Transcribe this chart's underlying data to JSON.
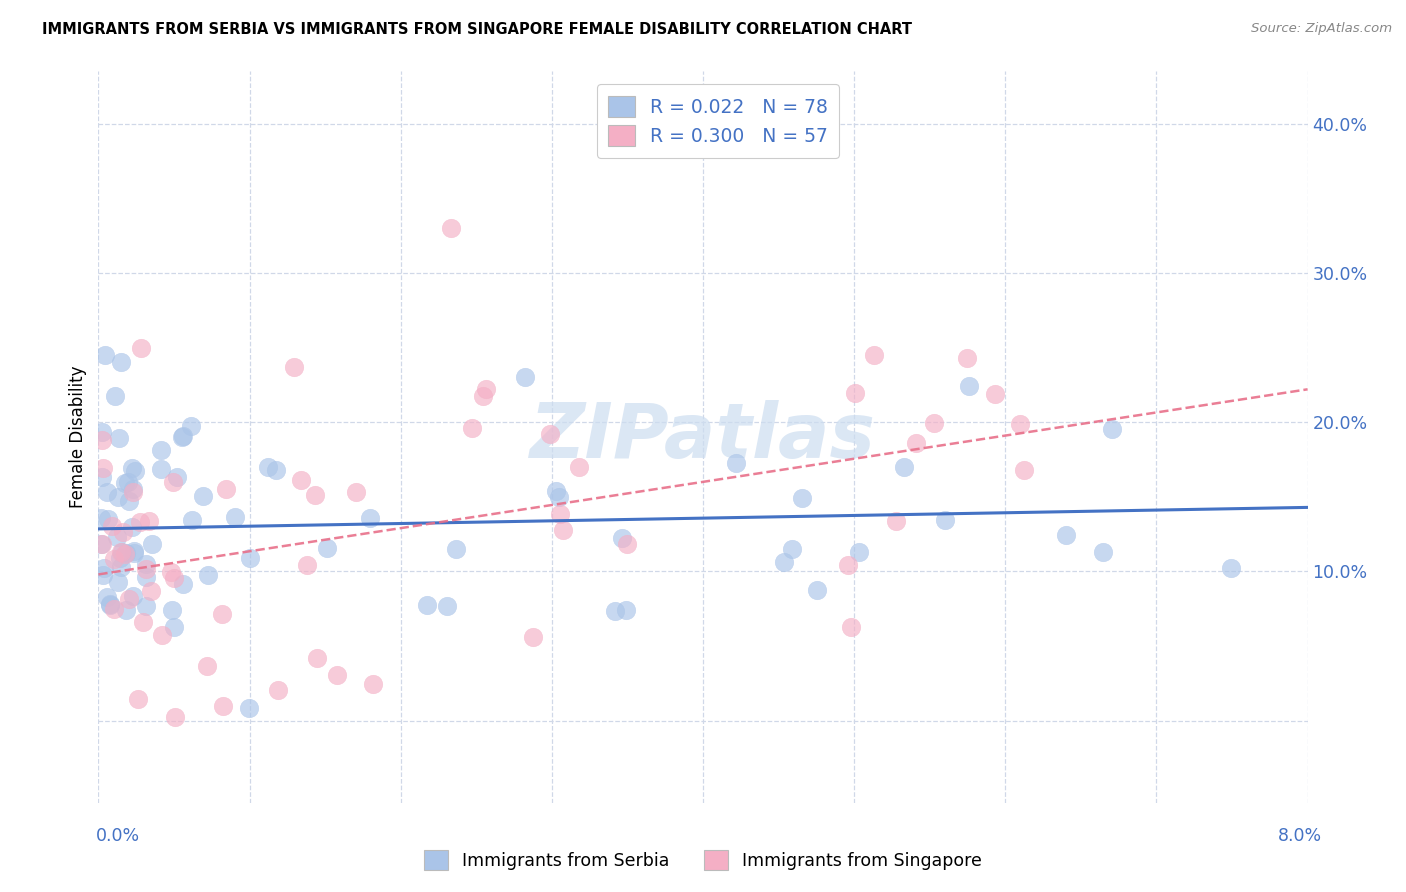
{
  "title": "IMMIGRANTS FROM SERBIA VS IMMIGRANTS FROM SINGAPORE FEMALE DISABILITY CORRELATION CHART",
  "source": "Source: ZipAtlas.com",
  "ylabel": "Female Disability",
  "xmin": 0.0,
  "xmax": 0.08,
  "ymin": -0.055,
  "ymax": 0.435,
  "serbia_R": 0.022,
  "serbia_N": 78,
  "singapore_R": 0.3,
  "singapore_N": 57,
  "serbia_color": "#aac4e8",
  "singapore_color": "#f4afc5",
  "serbia_line_color": "#4472c4",
  "singapore_line_color": "#e8708a",
  "label_color": "#4472c4",
  "grid_color": "#d0d8e8",
  "watermark_color": "#ccddf0",
  "serbia_line_slope": 0.18,
  "serbia_line_intercept": 0.1285,
  "singapore_line_slope": 1.55,
  "singapore_line_intercept": 0.098
}
